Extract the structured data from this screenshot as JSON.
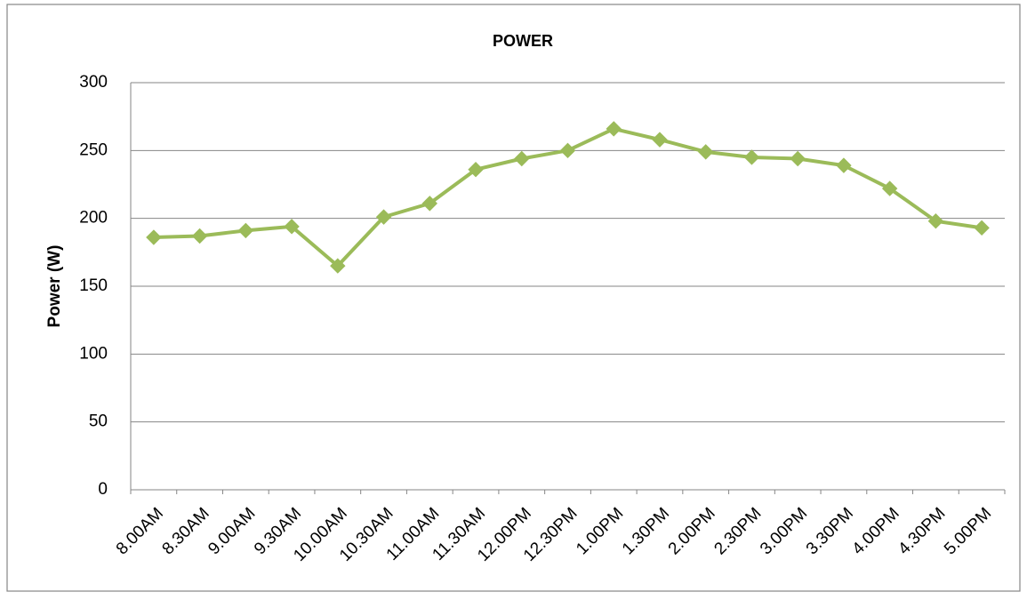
{
  "chart_data": {
    "type": "line",
    "title": "POWER",
    "y_label": "Power (W)",
    "categories": [
      "8.00AM",
      "8.30AM",
      "9.00AM",
      "9.30AM",
      "10.00AM",
      "10.30AM",
      "11.00AM",
      "11.30AM",
      "12.00PM",
      "12.30PM",
      "1.00PM",
      "1.30PM",
      "2.00PM",
      "2.30PM",
      "3.00PM",
      "3.30PM",
      "4.00PM",
      "4.30PM",
      "5.00PM"
    ],
    "values": [
      186,
      187,
      191,
      194,
      165,
      201,
      211,
      236,
      244,
      250,
      266,
      258,
      249,
      245,
      244,
      239,
      222,
      198,
      193
    ],
    "color": "#9bbb59",
    "marker": "diamond",
    "ylim": [
      0,
      300
    ],
    "yticks": [
      0,
      50,
      100,
      150,
      200,
      250,
      300
    ],
    "grid": true
  }
}
